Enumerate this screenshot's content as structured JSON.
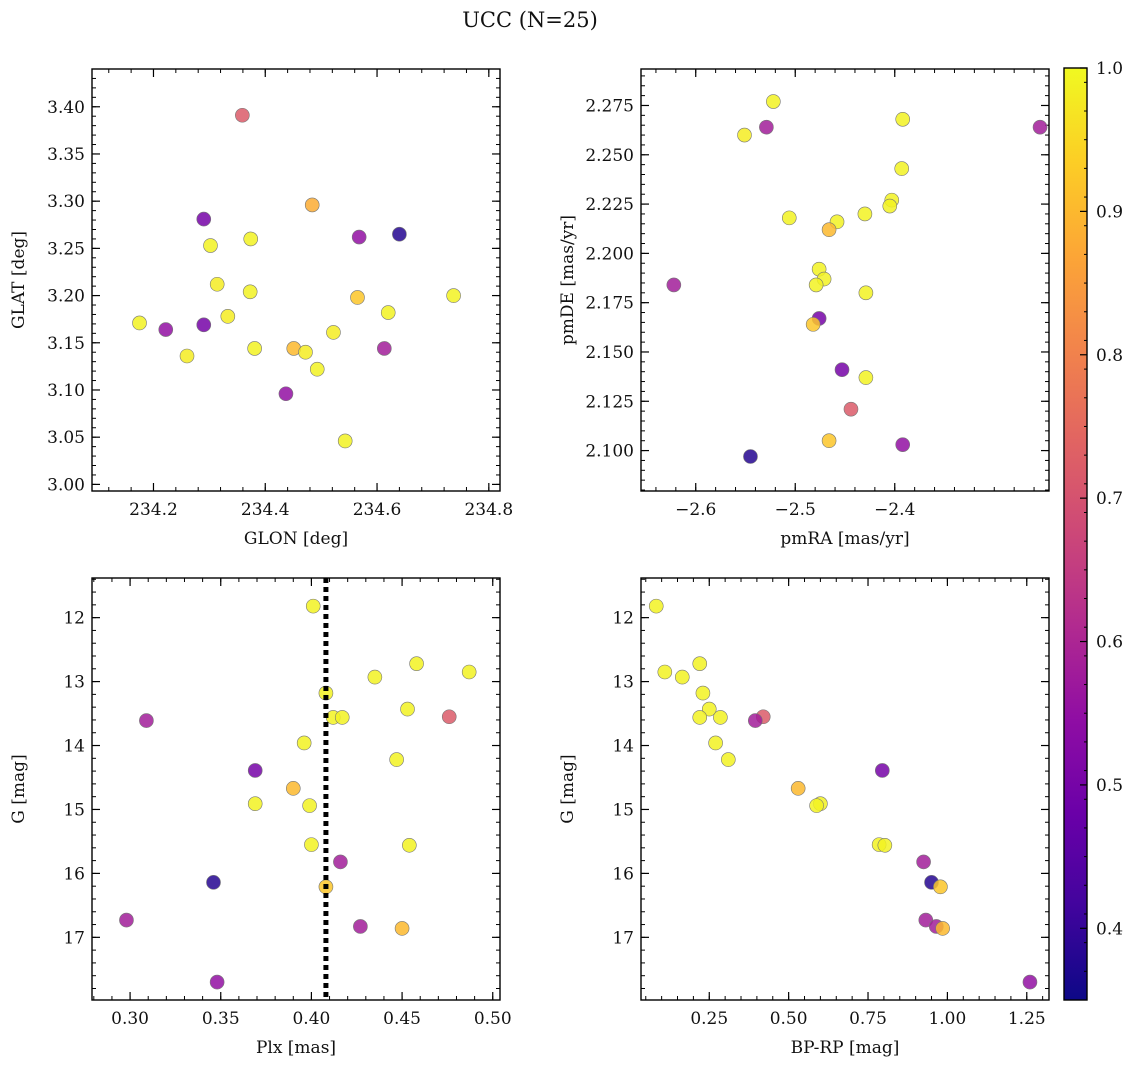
{
  "figure_title": "UCC (N=25)",
  "chart_data": [
    {
      "type": "scatter",
      "id": "glon-glat",
      "xlabel": "GLON [deg]",
      "ylabel": "GLAT [deg]",
      "xlim": [
        234.09,
        234.82
      ],
      "ylim": [
        2.993,
        3.44
      ],
      "xticks": [
        234.2,
        234.4,
        234.6,
        234.8
      ],
      "xtick_labels": [
        "234.2",
        "234.4",
        "234.6",
        "234.8"
      ],
      "yticks": [
        3.0,
        3.05,
        3.1,
        3.15,
        3.2,
        3.25,
        3.3,
        3.35,
        3.4
      ],
      "ytick_labels": [
        "3.00",
        "3.05",
        "3.10",
        "3.15",
        "3.20",
        "3.25",
        "3.30",
        "3.35",
        "3.40"
      ],
      "y_inverted": false,
      "vline": null,
      "points": [
        {
          "x": 234.359,
          "y": 3.391,
          "c": 0.72
        },
        {
          "x": 234.29,
          "y": 3.281,
          "c": 0.5
        },
        {
          "x": 234.484,
          "y": 3.296,
          "c": 0.88
        },
        {
          "x": 234.64,
          "y": 3.265,
          "c": 0.38
        },
        {
          "x": 234.568,
          "y": 3.262,
          "c": 0.55
        },
        {
          "x": 234.374,
          "y": 3.26,
          "c": 0.99
        },
        {
          "x": 234.302,
          "y": 3.253,
          "c": 0.99
        },
        {
          "x": 234.314,
          "y": 3.212,
          "c": 0.98
        },
        {
          "x": 234.373,
          "y": 3.204,
          "c": 0.99
        },
        {
          "x": 234.565,
          "y": 3.198,
          "c": 0.92
        },
        {
          "x": 234.737,
          "y": 3.2,
          "c": 0.99
        },
        {
          "x": 234.62,
          "y": 3.182,
          "c": 0.99
        },
        {
          "x": 234.333,
          "y": 3.178,
          "c": 0.98
        },
        {
          "x": 234.175,
          "y": 3.171,
          "c": 0.99
        },
        {
          "x": 234.29,
          "y": 3.169,
          "c": 0.5
        },
        {
          "x": 234.222,
          "y": 3.164,
          "c": 0.55
        },
        {
          "x": 234.522,
          "y": 3.161,
          "c": 0.98
        },
        {
          "x": 234.381,
          "y": 3.144,
          "c": 0.99
        },
        {
          "x": 234.451,
          "y": 3.144,
          "c": 0.9
        },
        {
          "x": 234.613,
          "y": 3.144,
          "c": 0.58
        },
        {
          "x": 234.472,
          "y": 3.14,
          "c": 0.98
        },
        {
          "x": 234.26,
          "y": 3.136,
          "c": 0.98
        },
        {
          "x": 234.493,
          "y": 3.122,
          "c": 0.99
        },
        {
          "x": 234.437,
          "y": 3.096,
          "c": 0.55
        },
        {
          "x": 234.543,
          "y": 3.046,
          "c": 0.99
        }
      ]
    },
    {
      "type": "scatter",
      "id": "pmra-pmde",
      "xlabel": "pmRA [mas/yr]",
      "ylabel": "pmDE [mas/yr]",
      "xlim": [
        -2.655,
        -2.245
      ],
      "ylim": [
        2.0795,
        2.2935
      ],
      "xticks": [
        -2.6,
        -2.5,
        -2.4
      ],
      "xtick_labels": [
        "−2.6",
        "−2.5",
        "−2.4"
      ],
      "yticks": [
        2.1,
        2.125,
        2.15,
        2.175,
        2.2,
        2.225,
        2.25,
        2.275
      ],
      "ytick_labels": [
        "2.100",
        "2.125",
        "2.150",
        "2.175",
        "2.200",
        "2.225",
        "2.250",
        "2.275"
      ],
      "y_inverted": false,
      "vline": null,
      "points": [
        {
          "x": -2.522,
          "y": 2.277,
          "c": 0.99
        },
        {
          "x": -2.392,
          "y": 2.268,
          "c": 0.99
        },
        {
          "x": -2.529,
          "y": 2.264,
          "c": 0.58
        },
        {
          "x": -2.254,
          "y": 2.264,
          "c": 0.58
        },
        {
          "x": -2.551,
          "y": 2.26,
          "c": 0.98
        },
        {
          "x": -2.393,
          "y": 2.243,
          "c": 0.99
        },
        {
          "x": -2.403,
          "y": 2.227,
          "c": 0.99
        },
        {
          "x": -2.405,
          "y": 2.224,
          "c": 0.99
        },
        {
          "x": -2.43,
          "y": 2.22,
          "c": 0.99
        },
        {
          "x": -2.506,
          "y": 2.218,
          "c": 0.99
        },
        {
          "x": -2.458,
          "y": 2.216,
          "c": 0.99
        },
        {
          "x": -2.466,
          "y": 2.212,
          "c": 0.9
        },
        {
          "x": -2.476,
          "y": 2.192,
          "c": 0.99
        },
        {
          "x": -2.471,
          "y": 2.187,
          "c": 0.99
        },
        {
          "x": -2.622,
          "y": 2.184,
          "c": 0.58
        },
        {
          "x": -2.479,
          "y": 2.184,
          "c": 0.99
        },
        {
          "x": -2.429,
          "y": 2.18,
          "c": 0.99
        },
        {
          "x": -2.476,
          "y": 2.167,
          "c": 0.5
        },
        {
          "x": -2.482,
          "y": 2.164,
          "c": 0.92
        },
        {
          "x": -2.453,
          "y": 2.141,
          "c": 0.5
        },
        {
          "x": -2.429,
          "y": 2.137,
          "c": 0.99
        },
        {
          "x": -2.444,
          "y": 2.121,
          "c": 0.72
        },
        {
          "x": -2.466,
          "y": 2.105,
          "c": 0.92
        },
        {
          "x": -2.392,
          "y": 2.103,
          "c": 0.55
        },
        {
          "x": -2.545,
          "y": 2.097,
          "c": 0.38
        }
      ]
    },
    {
      "type": "scatter",
      "id": "plx-g",
      "xlabel": "Plx [mas]",
      "ylabel": "G [mag]",
      "xlim": [
        0.279,
        0.504
      ],
      "ylim": [
        11.38,
        17.98
      ],
      "xticks": [
        0.3,
        0.35,
        0.4,
        0.45,
        0.5
      ],
      "xtick_labels": [
        "0.30",
        "0.35",
        "0.40",
        "0.45",
        "0.50"
      ],
      "yticks": [
        12,
        13,
        14,
        15,
        16,
        17
      ],
      "ytick_labels": [
        "12",
        "13",
        "14",
        "15",
        "16",
        "17"
      ],
      "y_inverted": true,
      "vline": 0.408,
      "points": [
        {
          "x": 0.401,
          "y": 11.82,
          "c": 0.99
        },
        {
          "x": 0.458,
          "y": 12.72,
          "c": 0.99
        },
        {
          "x": 0.487,
          "y": 12.85,
          "c": 0.99
        },
        {
          "x": 0.435,
          "y": 12.93,
          "c": 0.99
        },
        {
          "x": 0.408,
          "y": 13.18,
          "c": 0.99
        },
        {
          "x": 0.453,
          "y": 13.43,
          "c": 0.99
        },
        {
          "x": 0.412,
          "y": 13.56,
          "c": 0.99
        },
        {
          "x": 0.417,
          "y": 13.56,
          "c": 0.99
        },
        {
          "x": 0.476,
          "y": 13.55,
          "c": 0.72
        },
        {
          "x": 0.309,
          "y": 13.61,
          "c": 0.58
        },
        {
          "x": 0.396,
          "y": 13.96,
          "c": 0.99
        },
        {
          "x": 0.369,
          "y": 14.39,
          "c": 0.5
        },
        {
          "x": 0.447,
          "y": 14.22,
          "c": 0.99
        },
        {
          "x": 0.39,
          "y": 14.67,
          "c": 0.9
        },
        {
          "x": 0.369,
          "y": 14.91,
          "c": 0.99
        },
        {
          "x": 0.399,
          "y": 14.94,
          "c": 0.99
        },
        {
          "x": 0.4,
          "y": 15.55,
          "c": 0.99
        },
        {
          "x": 0.454,
          "y": 15.56,
          "c": 0.99
        },
        {
          "x": 0.416,
          "y": 15.82,
          "c": 0.58
        },
        {
          "x": 0.346,
          "y": 16.14,
          "c": 0.38
        },
        {
          "x": 0.408,
          "y": 16.21,
          "c": 0.92
        },
        {
          "x": 0.298,
          "y": 16.73,
          "c": 0.58
        },
        {
          "x": 0.427,
          "y": 16.83,
          "c": 0.58
        },
        {
          "x": 0.45,
          "y": 16.86,
          "c": 0.9
        },
        {
          "x": 0.348,
          "y": 17.7,
          "c": 0.55
        }
      ]
    },
    {
      "type": "scatter",
      "id": "bprp-g",
      "xlabel": "BP-RP [mag]",
      "ylabel": "G [mag]",
      "xlim": [
        0.035,
        1.32
      ],
      "ylim": [
        11.38,
        17.98
      ],
      "xticks": [
        0.25,
        0.5,
        0.75,
        1.0,
        1.25
      ],
      "xtick_labels": [
        "0.25",
        "0.50",
        "0.75",
        "1.00",
        "1.25"
      ],
      "yticks": [
        12,
        13,
        14,
        15,
        16,
        17
      ],
      "ytick_labels": [
        "12",
        "13",
        "14",
        "15",
        "16",
        "17"
      ],
      "y_inverted": true,
      "vline": null,
      "points": [
        {
          "x": 0.083,
          "y": 11.82,
          "c": 0.99
        },
        {
          "x": 0.22,
          "y": 12.72,
          "c": 0.99
        },
        {
          "x": 0.11,
          "y": 12.85,
          "c": 0.99
        },
        {
          "x": 0.165,
          "y": 12.93,
          "c": 0.99
        },
        {
          "x": 0.23,
          "y": 13.18,
          "c": 0.99
        },
        {
          "x": 0.25,
          "y": 13.43,
          "c": 0.99
        },
        {
          "x": 0.22,
          "y": 13.56,
          "c": 0.99
        },
        {
          "x": 0.285,
          "y": 13.56,
          "c": 0.99
        },
        {
          "x": 0.42,
          "y": 13.55,
          "c": 0.72
        },
        {
          "x": 0.395,
          "y": 13.61,
          "c": 0.58
        },
        {
          "x": 0.27,
          "y": 13.96,
          "c": 0.99
        },
        {
          "x": 0.31,
          "y": 14.22,
          "c": 0.99
        },
        {
          "x": 0.795,
          "y": 14.39,
          "c": 0.5
        },
        {
          "x": 0.53,
          "y": 14.67,
          "c": 0.9
        },
        {
          "x": 0.6,
          "y": 14.91,
          "c": 0.99
        },
        {
          "x": 0.588,
          "y": 14.94,
          "c": 0.99
        },
        {
          "x": 0.785,
          "y": 15.55,
          "c": 0.99
        },
        {
          "x": 0.803,
          "y": 15.56,
          "c": 0.99
        },
        {
          "x": 0.925,
          "y": 15.82,
          "c": 0.58
        },
        {
          "x": 0.95,
          "y": 16.14,
          "c": 0.38
        },
        {
          "x": 0.978,
          "y": 16.21,
          "c": 0.92
        },
        {
          "x": 0.932,
          "y": 16.73,
          "c": 0.58
        },
        {
          "x": 0.965,
          "y": 16.83,
          "c": 0.58
        },
        {
          "x": 0.985,
          "y": 16.86,
          "c": 0.9
        },
        {
          "x": 1.26,
          "y": 17.7,
          "c": 0.55
        }
      ]
    }
  ],
  "colorbar": {
    "colormap": "plasma",
    "vmin": 0.35,
    "vmax": 1.0,
    "ticks": [
      0.4,
      0.5,
      0.6,
      0.7,
      0.8,
      0.9,
      1.0
    ],
    "tick_labels": [
      "0.4",
      "0.5",
      "0.6",
      "0.7",
      "0.8",
      "0.9",
      "1.0"
    ]
  }
}
